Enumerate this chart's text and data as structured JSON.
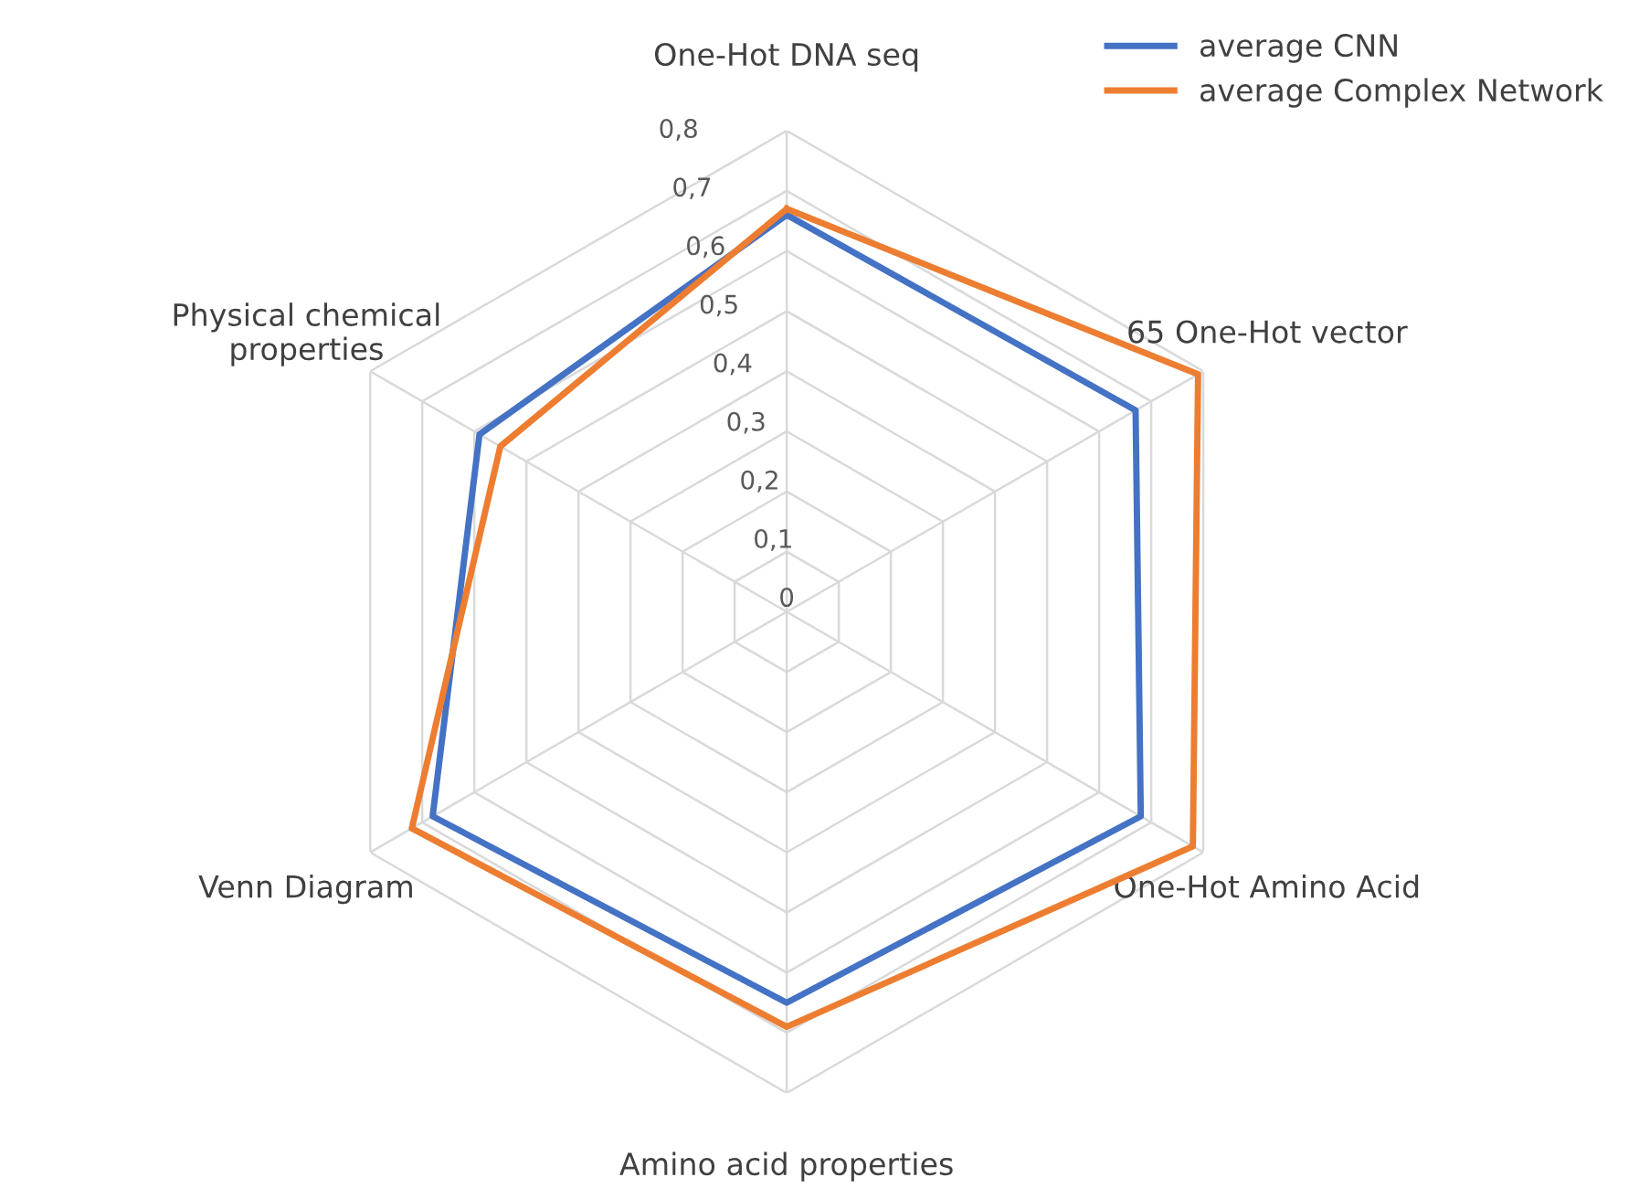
{
  "chart_data": {
    "type": "radar",
    "categories": [
      "One-Hot DNA seq",
      "65 One-Hot vector",
      "One-Hot Amino Acid",
      "Amino acid properties",
      "Venn Diagram",
      "Physical chemical\nproperties"
    ],
    "series": [
      {
        "name": "average CNN",
        "color": "#4472c4",
        "values": [
          0.66,
          0.67,
          0.68,
          0.65,
          0.68,
          0.59
        ]
      },
      {
        "name": "average Complex Network",
        "color": "#ed7d31",
        "values": [
          0.67,
          0.79,
          0.78,
          0.69,
          0.72,
          0.55
        ]
      }
    ],
    "ylim": [
      0,
      0.8
    ],
    "yticks": [
      {
        "value": 0,
        "label": "0"
      },
      {
        "value": 0.1,
        "label": "0,1"
      },
      {
        "value": 0.2,
        "label": "0,2"
      },
      {
        "value": 0.3,
        "label": "0,3"
      },
      {
        "value": 0.4,
        "label": "0,4"
      },
      {
        "value": 0.5,
        "label": "0,5"
      },
      {
        "value": 0.6,
        "label": "0,6"
      },
      {
        "value": 0.7,
        "label": "0,7"
      },
      {
        "value": 0.8,
        "label": "0,8"
      }
    ],
    "grid": true,
    "legend": "top right",
    "marker": "none",
    "line_style": "solid"
  }
}
